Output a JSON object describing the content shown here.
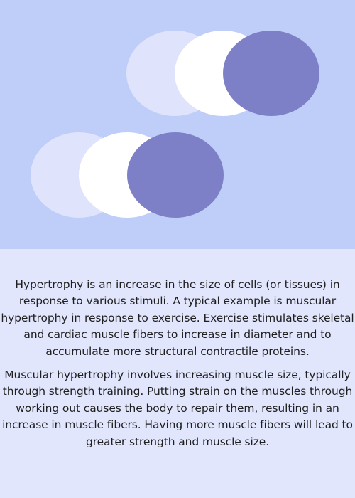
{
  "colors": {
    "hero_background": "#bfcdf9",
    "text_background": "#e2e6fc",
    "circle_light": "#dfe3fc",
    "circle_white": "#ffffff",
    "circle_dark": "#7d80c7",
    "text": "#1f1f1f"
  },
  "illustration": {
    "name": "overlapping-circles",
    "groups": [
      {
        "name": "top-right-group",
        "circles": [
          "light",
          "white",
          "dark"
        ]
      },
      {
        "name": "bottom-left-group",
        "circles": [
          "light",
          "white",
          "dark"
        ]
      }
    ]
  },
  "content": {
    "paragraphs": [
      "Hypertrophy is an increase in the size of cells (or tissues) in response to various stimuli. A typical example is muscular hypertrophy in response to exercise. Exercise stimulates skeletal and cardiac muscle fibers to increase in diameter and to accumulate more structural contractile proteins.",
      "Muscular hypertrophy involves increasing muscle size, typically through strength training. Putting strain on the muscles through working out causes the body to repair them, resulting in an increase in muscle fibers. Having more muscle fibers will lead to greater strength and muscle size."
    ]
  }
}
